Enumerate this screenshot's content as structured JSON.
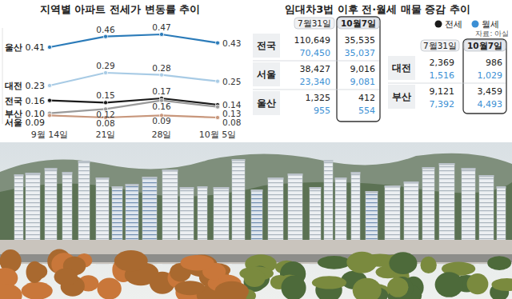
{
  "chart_data": {
    "type": "line",
    "title": "지역별 아파트 전세가 변동률 추이",
    "categories": [
      "9월 14일",
      "21일",
      "28일",
      "10월 5일"
    ],
    "ylim": [
      0.05,
      0.5
    ],
    "tick_labels": "x",
    "data_labels": true,
    "marker": "circle",
    "series": [
      {
        "name": "울산",
        "color": "#2b7bb9",
        "values": [
          0.41,
          0.46,
          0.47,
          0.43
        ],
        "value_labels": [
          "0.41",
          "0.46",
          "0.47",
          "0.43"
        ]
      },
      {
        "name": "대전",
        "color": "#a8cbe5",
        "values": [
          0.23,
          0.29,
          0.28,
          0.25
        ],
        "value_labels": [
          "0.23",
          "0.29",
          "0.28",
          "0.25"
        ]
      },
      {
        "name": "전국",
        "color": "#1a1a1a",
        "values": [
          0.16,
          0.15,
          0.17,
          0.14
        ],
        "value_labels": [
          "0.16",
          "0.15",
          "0.17",
          "0.14"
        ]
      },
      {
        "name": "부산",
        "color": "#9a9a9a",
        "values": [
          0.1,
          0.12,
          0.16,
          0.13
        ],
        "value_labels": [
          "0.10",
          "0.12",
          "0.16",
          "0.13"
        ]
      },
      {
        "name": "서울",
        "color": "#c8977c",
        "values": [
          0.09,
          0.08,
          0.09,
          0.08
        ],
        "value_labels": [
          "0.09",
          "0.08",
          "0.09",
          "0.08"
        ]
      }
    ]
  },
  "table": {
    "title": "임대차3법 이후 전·월세 매물 증감 추이",
    "legend": [
      {
        "name": "전세",
        "color": "#1a1a1a"
      },
      {
        "name": "월세",
        "color": "#3b8fd4"
      }
    ],
    "source": "자료: 아실",
    "panels": [
      {
        "headers": [
          "7월31일",
          "10월7일"
        ],
        "rows": [
          {
            "label": "전국",
            "jeonse": [
              "110,649",
              "35,535"
            ],
            "wolse": [
              "70,450",
              "35,037"
            ]
          },
          {
            "label": "서울",
            "jeonse": [
              "38,427",
              "9,016"
            ],
            "wolse": [
              "23,340",
              "9,081"
            ]
          },
          {
            "label": "울산",
            "jeonse": [
              "1,325",
              "412"
            ],
            "wolse": [
              "955",
              "554"
            ]
          }
        ]
      },
      {
        "headers": [
          "7월31일",
          "10월7일"
        ],
        "rows": [
          {
            "label": "대전",
            "jeonse": [
              "2,369",
              "986"
            ],
            "wolse": [
              "1,516",
              "1,029"
            ]
          },
          {
            "label": "부산",
            "jeonse": [
              "9,121",
              "3,459"
            ],
            "wolse": [
              "7,392",
              "4,493"
            ]
          }
        ]
      }
    ]
  }
}
